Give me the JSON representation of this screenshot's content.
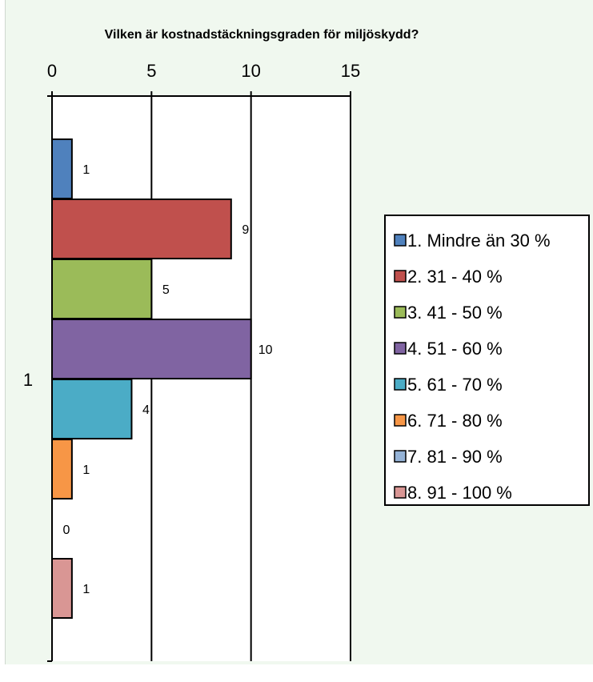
{
  "chart_data": {
    "type": "bar",
    "orientation": "horizontal",
    "title": "Vilken är kostnadstäckningsgraden för miljöskydd?",
    "categories": [
      "1"
    ],
    "xlim": [
      0,
      15
    ],
    "x_ticks": [
      0,
      5,
      10,
      15
    ],
    "grid": true,
    "legend_position": "right",
    "series": [
      {
        "name": "1. Mindre än 30 %",
        "values": [
          1
        ],
        "color": "#4f81bd"
      },
      {
        "name": "2. 31 - 40 %",
        "values": [
          9
        ],
        "color": "#c0504d"
      },
      {
        "name": "3. 41 - 50 %",
        "values": [
          5
        ],
        "color": "#9bbb59"
      },
      {
        "name": "4. 51 - 60 %",
        "values": [
          10
        ],
        "color": "#8064a2"
      },
      {
        "name": "5. 61 - 70 %",
        "values": [
          4
        ],
        "color": "#4bacc6"
      },
      {
        "name": "6. 71 - 80 %",
        "values": [
          1
        ],
        "color": "#f79646"
      },
      {
        "name": "7. 81 - 90 %",
        "values": [
          0
        ],
        "color": "#95b3d7"
      },
      {
        "name": "8. 91 - 100 %",
        "values": [
          1
        ],
        "color": "#d99694"
      }
    ],
    "plot_background": "#ffffff",
    "page_background": "#f0f8ef"
  }
}
